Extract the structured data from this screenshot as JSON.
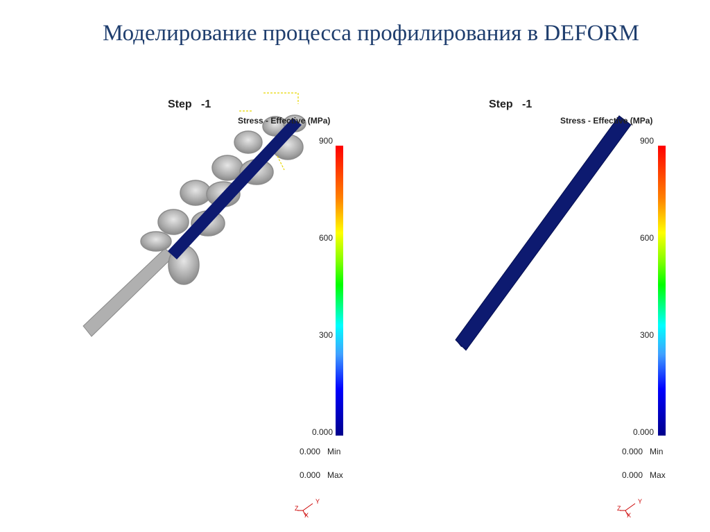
{
  "title": "Моделирование процесса профилирования в DEFORM",
  "panels": [
    {
      "step_label": "Step   -1",
      "legend_title": "Stress - Effective (MPa)",
      "ticks": [
        "900",
        "600",
        "300",
        "0.000"
      ],
      "min": {
        "value": "0.000",
        "label": "Min"
      },
      "max": {
        "value": "0.000",
        "label": "Max"
      },
      "axes": {
        "y": "Y",
        "z": "Z",
        "x": "X"
      }
    },
    {
      "step_label": "Step   -1",
      "legend_title": "Stress - Effective (MPa)",
      "ticks": [
        "900",
        "600",
        "300",
        "0.000"
      ],
      "min": {
        "value": "0.000",
        "label": "Min"
      },
      "max": {
        "value": "0.000",
        "label": "Max"
      },
      "axes": {
        "y": "Y",
        "z": "Z",
        "x": "X"
      }
    }
  ],
  "colors": {
    "title": "#1f3e6e",
    "workpiece": "#0d1a70",
    "rollers": "#b4b4b4"
  }
}
